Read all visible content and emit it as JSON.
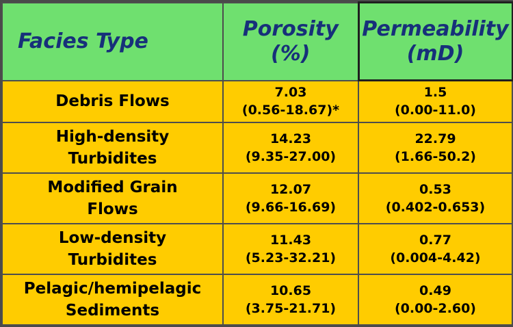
{
  "chart_data": {
    "type": "table",
    "columns": [
      {
        "line1": "Facies Type",
        "line2": ""
      },
      {
        "line1": "Porosity",
        "line2": "(%)"
      },
      {
        "line1": "Permeability",
        "line2": "(mD)"
      }
    ],
    "rows": [
      {
        "facies": [
          "Debris Flows"
        ],
        "porosity": {
          "mean": "7.03",
          "range": "(0.56-18.67)*"
        },
        "permeability": {
          "mean": "1.5",
          "range": "(0.00-11.0)"
        }
      },
      {
        "facies": [
          "High-density",
          "Turbidites"
        ],
        "porosity": {
          "mean": "14.23",
          "range": "(9.35-27.00)"
        },
        "permeability": {
          "mean": "22.79",
          "range": "(1.66-50.2)"
        }
      },
      {
        "facies": [
          "Modified Grain",
          "Flows"
        ],
        "porosity": {
          "mean": "12.07",
          "range": "(9.66-16.69)"
        },
        "permeability": {
          "mean": "0.53",
          "range": "(0.402-0.653)"
        }
      },
      {
        "facies": [
          "Low-density",
          "Turbidites"
        ],
        "porosity": {
          "mean": "11.43",
          "range": "(5.23-32.21)"
        },
        "permeability": {
          "mean": "0.77",
          "range": "(0.004-4.42)"
        }
      },
      {
        "facies": [
          "Pelagic/hemipelagic",
          "Sediments"
        ],
        "porosity": {
          "mean": "10.65",
          "range": "(3.75-21.71)"
        },
        "permeability": {
          "mean": "0.49",
          "range": "(0.00-2.60)"
        }
      }
    ],
    "colors": {
      "header": "#6fe06f",
      "header_text": "#17307a",
      "body": "#ffcc00",
      "body_text": "#000000",
      "border": "#4d4d4d"
    }
  }
}
